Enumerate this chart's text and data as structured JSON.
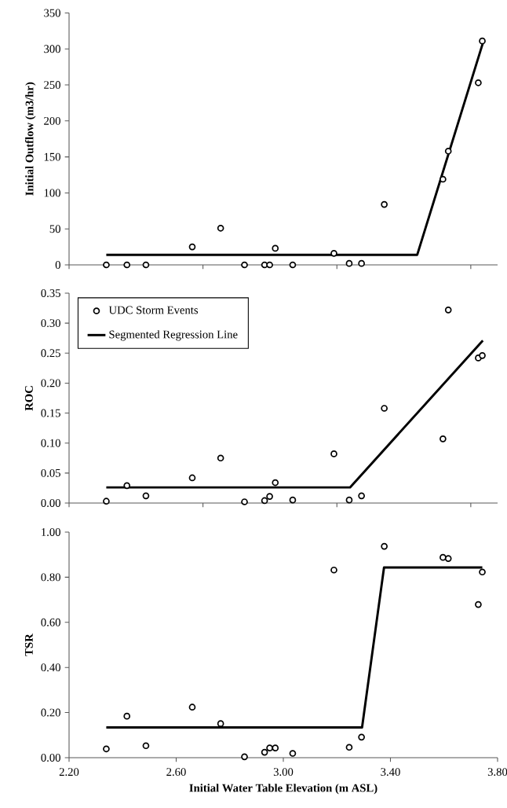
{
  "chart_data": [
    {
      "type": "scatter",
      "ylabel": "Initial Outflow (m3/hr)",
      "xlim": [
        2.2,
        3.8
      ],
      "ylim": [
        0,
        350
      ],
      "tick_labels": "y",
      "xticks": [
        {
          "value": 2.2,
          "label": null
        },
        {
          "value": 2.7,
          "label": null
        },
        {
          "value": 3.2,
          "label": null
        },
        {
          "value": 3.7,
          "label": null
        }
      ],
      "yticks": [
        0,
        50,
        100,
        150,
        200,
        250,
        300,
        350
      ],
      "series": [
        {
          "marker": "circle",
          "color": "#000000",
          "x": [
            2.339,
            2.416,
            2.487,
            2.66,
            2.766,
            2.855,
            2.93,
            2.949,
            2.97,
            3.035,
            3.189,
            3.246,
            3.292,
            3.377,
            3.596,
            3.616,
            3.728,
            3.743
          ],
          "values": [
            0,
            0,
            0,
            25,
            51,
            0,
            0,
            0,
            23,
            0,
            16,
            2,
            2,
            84,
            119,
            158,
            253,
            311
          ]
        },
        {
          "type": "line",
          "marker": "none",
          "color": "#000000",
          "x": [
            2.339,
            3.5,
            3.745
          ],
          "values": [
            14,
            14,
            308
          ]
        }
      ]
    },
    {
      "type": "scatter",
      "ylabel": "ROC",
      "xlim": [
        2.2,
        3.8
      ],
      "ylim": [
        0,
        0.35
      ],
      "tick_labels": "y",
      "legend": "top left",
      "xticks": [
        {
          "value": 2.2,
          "label": null
        },
        {
          "value": 2.7,
          "label": null
        },
        {
          "value": 3.2,
          "label": null
        },
        {
          "value": 3.7,
          "label": null
        }
      ],
      "yticks": [
        {
          "value": 0,
          "label": "0.00"
        },
        {
          "value": 0.05,
          "label": "0.05"
        },
        {
          "value": 0.1,
          "label": "0.10"
        },
        {
          "value": 0.15,
          "label": "0.15"
        },
        {
          "value": 0.2,
          "label": "0.20"
        },
        {
          "value": 0.25,
          "label": "0.25"
        },
        {
          "value": 0.3,
          "label": "0.30"
        },
        {
          "value": 0.35,
          "label": "0.35"
        }
      ],
      "series": [
        {
          "marker": "circle",
          "name": "UDC Storm Events",
          "color": "#000000",
          "x": [
            2.339,
            2.416,
            2.487,
            2.66,
            2.766,
            2.855,
            2.93,
            2.949,
            2.97,
            3.035,
            3.189,
            3.246,
            3.292,
            3.377,
            3.596,
            3.616,
            3.728,
            3.743
          ],
          "values": [
            0.003,
            0.029,
            0.012,
            0.042,
            0.075,
            0.002,
            0.004,
            0.011,
            0.034,
            0.005,
            0.082,
            0.005,
            0.012,
            0.158,
            0.107,
            0.322,
            0.242,
            0.246
          ]
        },
        {
          "type": "line",
          "marker": "none",
          "name": "Segmented Regression Line",
          "color": "#000000",
          "x": [
            2.339,
            3.249,
            3.745
          ],
          "values": [
            0.026,
            0.026,
            0.271
          ]
        }
      ]
    },
    {
      "type": "scatter",
      "ylabel": "TSR",
      "xlabel": "Initial Water Table Elevation (m ASL)",
      "xlim": [
        2.2,
        3.8
      ],
      "ylim": [
        0,
        1
      ],
      "xticks": [
        {
          "value": 2.2,
          "label": "2.20"
        },
        {
          "value": 2.6,
          "label": "2.60"
        },
        {
          "value": 3.0,
          "label": "3.00"
        },
        {
          "value": 3.4,
          "label": "3.40"
        },
        {
          "value": 3.8,
          "label": "3.80"
        }
      ],
      "yticks": [
        {
          "value": 0,
          "label": "0.00"
        },
        {
          "value": 0.2,
          "label": "0.20"
        },
        {
          "value": 0.4,
          "label": "0.40"
        },
        {
          "value": 0.6,
          "label": "0.60"
        },
        {
          "value": 0.8,
          "label": "0.80"
        },
        {
          "value": 1,
          "label": "1.00"
        }
      ],
      "series": [
        {
          "marker": "circle",
          "color": "#000000",
          "x": [
            2.339,
            2.416,
            2.487,
            2.66,
            2.766,
            2.855,
            2.93,
            2.949,
            2.97,
            3.035,
            3.189,
            3.246,
            3.292,
            3.377,
            3.596,
            3.616,
            3.728,
            3.743
          ],
          "values": [
            0.039,
            0.184,
            0.053,
            0.224,
            0.151,
            0.004,
            0.024,
            0.043,
            0.043,
            0.019,
            0.832,
            0.046,
            0.091,
            0.937,
            0.888,
            0.883,
            0.679,
            0.823
          ]
        },
        {
          "type": "line",
          "marker": "none",
          "color": "#000000",
          "x": [
            2.339,
            3.294,
            3.376,
            3.743
          ],
          "values": [
            0.134,
            0.134,
            0.843,
            0.843
          ]
        }
      ]
    }
  ]
}
